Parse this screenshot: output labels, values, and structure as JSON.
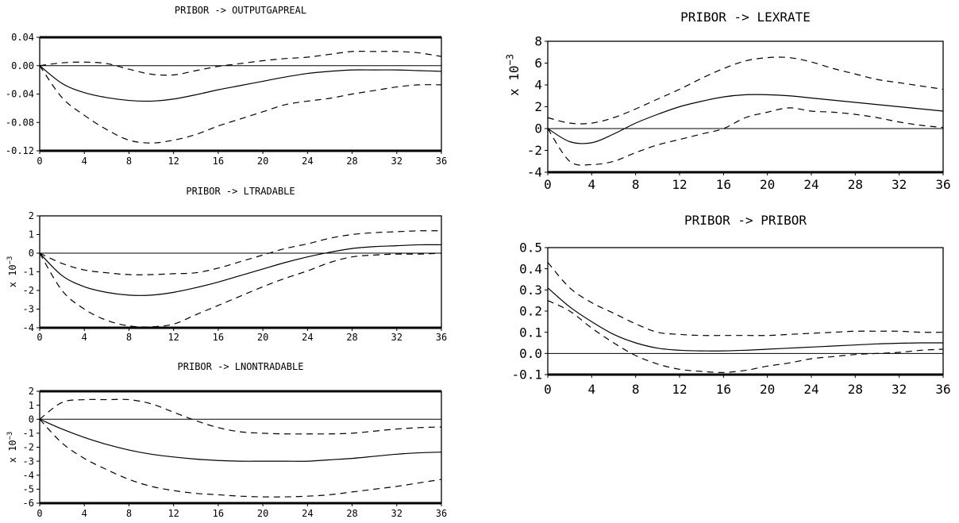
{
  "chart_data": [
    {
      "type": "line",
      "title": "PRIBOR -> OUTPUTGAPREAL",
      "ylabel": "",
      "x": [
        0,
        2,
        4,
        6,
        8,
        10,
        12,
        14,
        16,
        18,
        20,
        22,
        24,
        26,
        28,
        30,
        32,
        34,
        36
      ],
      "xticks": [
        "0",
        "4",
        "8",
        "12",
        "16",
        "20",
        "24",
        "28",
        "32",
        "36"
      ],
      "xlim": [
        0,
        36
      ],
      "ylim": [
        -0.12,
        0.04
      ],
      "yticks": [
        "0.04",
        "0.00",
        "-0.04",
        "-0.08",
        "-0.12"
      ],
      "grid": false,
      "series": [
        {
          "values": [
            0.0,
            -0.025,
            -0.038,
            -0.045,
            -0.049,
            -0.05,
            -0.047,
            -0.041,
            -0.034,
            -0.028,
            -0.022,
            -0.016,
            -0.011,
            -0.008,
            -0.006,
            -0.006,
            -0.006,
            -0.007,
            -0.008
          ]
        },
        {
          "values": [
            0.0,
            0.004,
            0.005,
            0.003,
            -0.005,
            -0.012,
            -0.013,
            -0.007,
            -0.001,
            0.003,
            0.007,
            0.01,
            0.012,
            0.016,
            0.02,
            0.02,
            0.02,
            0.018,
            0.013
          ]
        },
        {
          "values": [
            0.0,
            -0.045,
            -0.07,
            -0.09,
            -0.105,
            -0.109,
            -0.105,
            -0.097,
            -0.085,
            -0.075,
            -0.065,
            -0.055,
            -0.05,
            -0.046,
            -0.04,
            -0.035,
            -0.03,
            -0.027,
            -0.027
          ]
        }
      ]
    },
    {
      "type": "line",
      "title": "PRIBOR -> LTRADABLE",
      "ylabel": "x 10-3",
      "x": [
        0,
        2,
        4,
        6,
        8,
        10,
        12,
        14,
        16,
        18,
        20,
        22,
        24,
        26,
        28,
        30,
        32,
        34,
        36
      ],
      "xticks": [
        "0",
        "4",
        "8",
        "12",
        "16",
        "20",
        "24",
        "28",
        "32",
        "36"
      ],
      "xlim": [
        0,
        36
      ],
      "ylim": [
        -4,
        2
      ],
      "yticks": [
        "2",
        "1",
        "0",
        "-1",
        "-2",
        "-3",
        "-4"
      ],
      "grid": false,
      "series": [
        {
          "values": [
            0.0,
            -1.2,
            -1.8,
            -2.1,
            -2.25,
            -2.25,
            -2.1,
            -1.85,
            -1.55,
            -1.2,
            -0.85,
            -0.5,
            -0.2,
            0.05,
            0.25,
            0.35,
            0.4,
            0.45,
            0.45
          ]
        },
        {
          "values": [
            0.0,
            -0.55,
            -0.9,
            -1.05,
            -1.15,
            -1.15,
            -1.1,
            -1.05,
            -0.8,
            -0.45,
            -0.1,
            0.25,
            0.5,
            0.8,
            1.0,
            1.1,
            1.15,
            1.2,
            1.2
          ]
        },
        {
          "values": [
            0.0,
            -2.0,
            -3.0,
            -3.6,
            -3.9,
            -3.95,
            -3.8,
            -3.3,
            -2.8,
            -2.3,
            -1.8,
            -1.35,
            -0.95,
            -0.5,
            -0.2,
            -0.1,
            -0.05,
            -0.05,
            0.0
          ]
        }
      ]
    },
    {
      "type": "line",
      "title": "PRIBOR -> LNONTRADABLE",
      "ylabel": "x 10-3",
      "x": [
        0,
        2,
        4,
        6,
        8,
        10,
        12,
        14,
        16,
        18,
        20,
        22,
        24,
        26,
        28,
        30,
        32,
        34,
        36
      ],
      "xticks": [
        "0",
        "4",
        "8",
        "12",
        "16",
        "20",
        "24",
        "28",
        "32",
        "36"
      ],
      "xlim": [
        0,
        36
      ],
      "ylim": [
        -6,
        2
      ],
      "yticks": [
        "2",
        "1",
        "0",
        "-1",
        "-2",
        "-3",
        "-4",
        "-5",
        "-6"
      ],
      "grid": false,
      "series": [
        {
          "values": [
            0.0,
            -0.7,
            -1.3,
            -1.8,
            -2.2,
            -2.5,
            -2.7,
            -2.85,
            -2.95,
            -3.0,
            -3.0,
            -3.0,
            -3.0,
            -2.9,
            -2.8,
            -2.65,
            -2.5,
            -2.4,
            -2.35
          ]
        },
        {
          "values": [
            0.0,
            1.2,
            1.4,
            1.4,
            1.4,
            1.1,
            0.5,
            -0.1,
            -0.6,
            -0.9,
            -1.0,
            -1.05,
            -1.05,
            -1.05,
            -1.0,
            -0.85,
            -0.7,
            -0.6,
            -0.55
          ]
        },
        {
          "values": [
            0.0,
            -1.7,
            -2.8,
            -3.6,
            -4.3,
            -4.8,
            -5.1,
            -5.3,
            -5.4,
            -5.5,
            -5.55,
            -5.55,
            -5.5,
            -5.4,
            -5.2,
            -5.0,
            -4.8,
            -4.55,
            -4.3
          ]
        }
      ]
    },
    {
      "type": "line",
      "title": "PRIBOR -> LEXRATE",
      "ylabel": "x 10-3",
      "x": [
        0,
        2,
        4,
        6,
        8,
        10,
        12,
        14,
        16,
        18,
        20,
        22,
        24,
        26,
        28,
        30,
        32,
        34,
        36
      ],
      "xticks": [
        "0",
        "4",
        "8",
        "12",
        "16",
        "20",
        "24",
        "28",
        "32",
        "36"
      ],
      "xlim": [
        0,
        36
      ],
      "ylim": [
        -4,
        8
      ],
      "yticks": [
        "8",
        "6",
        "4",
        "2",
        "0",
        "-2",
        "-4"
      ],
      "grid": false,
      "series": [
        {
          "values": [
            0.0,
            -1.2,
            -1.3,
            -0.5,
            0.5,
            1.3,
            2.0,
            2.5,
            2.9,
            3.1,
            3.1,
            3.0,
            2.8,
            2.6,
            2.4,
            2.2,
            2.0,
            1.8,
            1.6
          ]
        },
        {
          "values": [
            1.0,
            0.5,
            0.5,
            1.0,
            1.8,
            2.7,
            3.6,
            4.6,
            5.5,
            6.2,
            6.5,
            6.5,
            6.1,
            5.5,
            5.0,
            4.5,
            4.2,
            3.9,
            3.6
          ]
        },
        {
          "values": [
            0.0,
            -3.0,
            -3.3,
            -3.0,
            -2.2,
            -1.5,
            -1.0,
            -0.5,
            0.0,
            1.0,
            1.5,
            1.9,
            1.6,
            1.5,
            1.3,
            1.0,
            0.6,
            0.3,
            0.1
          ]
        }
      ]
    },
    {
      "type": "line",
      "title": "PRIBOR -> PRIBOR",
      "ylabel": "",
      "x": [
        0,
        2,
        4,
        6,
        8,
        10,
        12,
        14,
        16,
        18,
        20,
        22,
        24,
        26,
        28,
        30,
        32,
        34,
        36
      ],
      "xticks": [
        "0",
        "4",
        "8",
        "12",
        "16",
        "20",
        "24",
        "28",
        "32",
        "36"
      ],
      "xlim": [
        0,
        36
      ],
      "ylim": [
        -0.1,
        0.5
      ],
      "yticks": [
        "0.5",
        "0.4",
        "0.3",
        "0.2",
        "0.1",
        "0.0",
        "-0.1"
      ],
      "grid": false,
      "series": [
        {
          "values": [
            0.31,
            0.22,
            0.15,
            0.09,
            0.05,
            0.025,
            0.015,
            0.012,
            0.012,
            0.015,
            0.02,
            0.025,
            0.03,
            0.035,
            0.04,
            0.045,
            0.048,
            0.05,
            0.05
          ]
        },
        {
          "values": [
            0.43,
            0.31,
            0.24,
            0.19,
            0.14,
            0.1,
            0.09,
            0.085,
            0.085,
            0.085,
            0.085,
            0.09,
            0.095,
            0.1,
            0.105,
            0.105,
            0.105,
            0.1,
            0.1
          ]
        },
        {
          "values": [
            0.25,
            0.2,
            0.12,
            0.05,
            -0.01,
            -0.05,
            -0.075,
            -0.085,
            -0.09,
            -0.08,
            -0.06,
            -0.045,
            -0.025,
            -0.015,
            -0.005,
            0.0,
            0.005,
            0.015,
            0.02
          ]
        }
      ]
    }
  ]
}
